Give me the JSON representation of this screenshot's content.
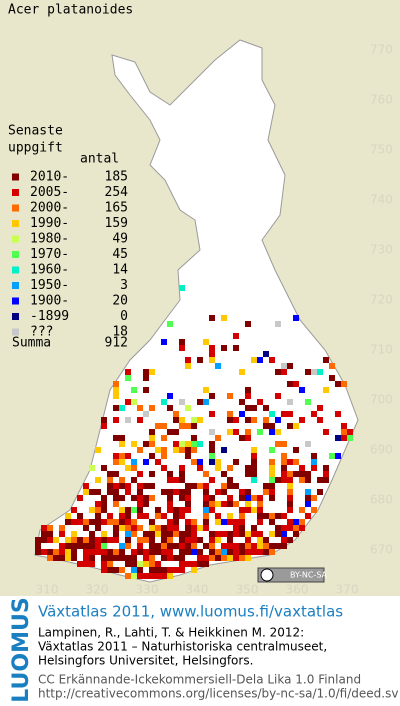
{
  "title": "Acer platanoides",
  "legend": {
    "heading_lines": [
      "Senaste",
      "uppgift"
    ],
    "count_heading": "antal",
    "rows": [
      {
        "label": "2010-",
        "count": 185,
        "color": "#800000"
      },
      {
        "label": "2005-",
        "count": 254,
        "color": "#d40000"
      },
      {
        "label": "2000-",
        "count": 165,
        "color": "#ff6a00"
      },
      {
        "label": "1990-",
        "count": 159,
        "color": "#ffc800"
      },
      {
        "label": "1980-",
        "count": 49,
        "color": "#c8ff50"
      },
      {
        "label": "1970-",
        "count": 45,
        "color": "#50ff50"
      },
      {
        "label": "1960-",
        "count": 14,
        "color": "#00f0c8"
      },
      {
        "label": "1950-",
        "count": 3,
        "color": "#00a0ff"
      },
      {
        "label": "1900-",
        "count": 20,
        "color": "#0000ff"
      },
      {
        "label": "-1899",
        "count": 0,
        "color": "#000080"
      },
      {
        "label": "???",
        "count": 18,
        "color": "#c8c8c8"
      }
    ],
    "total": {
      "label": "Summa",
      "count": 912
    }
  },
  "grid": {
    "y_labels": [
      770,
      760,
      750,
      740,
      730,
      720,
      710,
      700,
      690,
      680,
      670
    ],
    "x_labels": [
      310,
      320,
      330,
      340,
      350,
      360,
      370
    ]
  },
  "license_badge": "BY-NC-SA",
  "footer": {
    "brand": "LUOMUS",
    "heading": "Växtatlas 2011, www.luomus.fi/vaxtatlas",
    "citation": [
      "Lampinen, R., Lahti, T. & Heikkinen M. 2012:",
      "Växtatlas 2011 – Naturhistoriska centralmuseet,",
      "Helsingfors Universitet, Helsingfors."
    ],
    "license": [
      "CC Erkännande-Ickekommersiell-Dela Lika 1.0 Finland",
      "http://creativecommons.org/licenses/by-nc-sa/1.0/fi/deed.sv"
    ]
  }
}
